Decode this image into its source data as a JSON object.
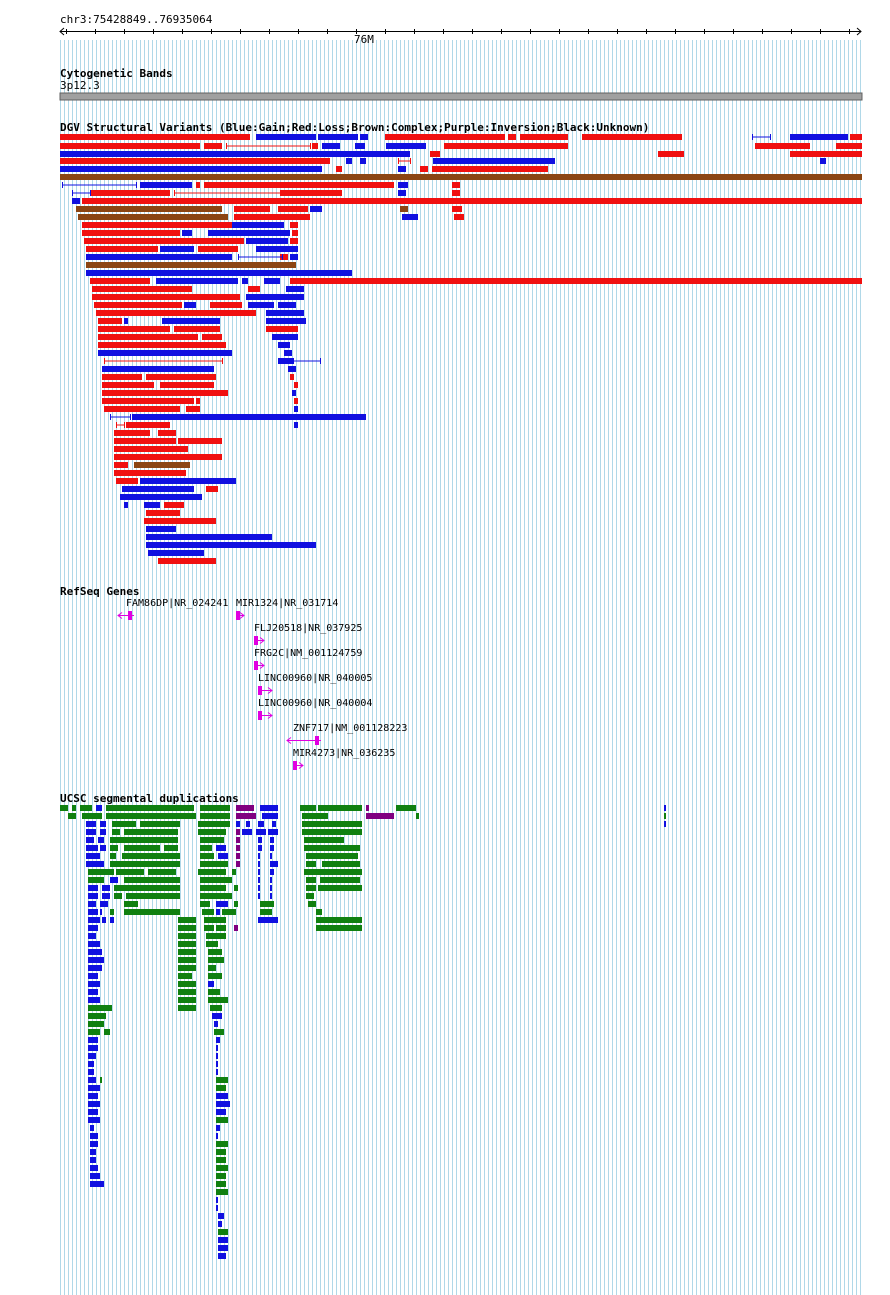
{
  "location": "chr3:75428849..76935064",
  "scale": {
    "label": "76M"
  },
  "tracks": {
    "cytoband": {
      "title": "Cytogenetic Bands",
      "band": "3p12.3"
    },
    "dgv": {
      "title": "DGV Structural Variants (Blue:Gain;Red:Loss;Brown:Complex;Purple:Inversion;Black:Unknown)"
    },
    "refseq": {
      "title": "RefSeq Genes",
      "genes": [
        {
          "label": "FAM86DP|NR_024241"
        },
        {
          "label": "MIR1324|NR_031714"
        },
        {
          "label": "FLJ20518|NR_037925"
        },
        {
          "label": "FRG2C|NM_001124759"
        },
        {
          "label": "LINC00960|NR_040005"
        },
        {
          "label": "LINC00960|NR_040004"
        },
        {
          "label": "ZNF717|NM_001128223"
        },
        {
          "label": "MIR4273|NR_036235"
        }
      ]
    },
    "segdup": {
      "title": "UCSC segmental duplications"
    }
  },
  "colors": {
    "gain": "#1010e0",
    "loss": "#f01010",
    "complex": "#8b4513",
    "gene": "#e000e0",
    "segdup_green": "#108010",
    "segdup_blue": "#1010e0",
    "segdup_purple": "#800080",
    "grid": "#b0d8e8"
  }
}
